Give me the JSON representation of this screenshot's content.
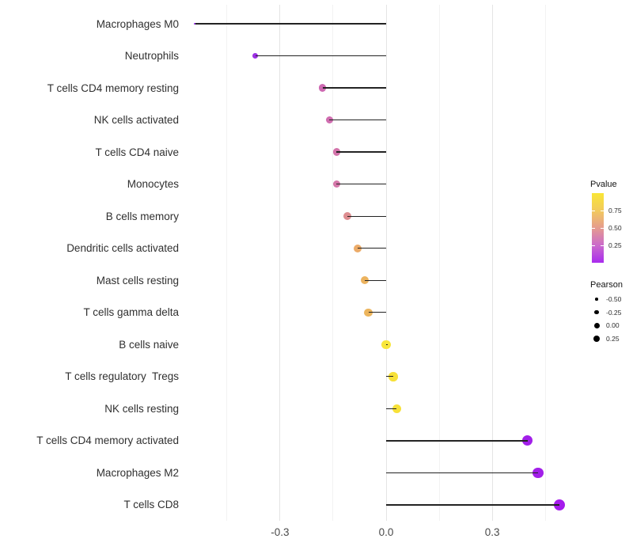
{
  "chart_data": {
    "type": "scatter",
    "subtype": "lollipop",
    "title": "",
    "xlabel": "",
    "ylabel": "",
    "xlim": [
      -0.59,
      0.55
    ],
    "grid": true,
    "x_major_ticks": [
      {
        "label": "-0.3",
        "value": -0.3
      },
      {
        "label": "0.0",
        "value": 0.0
      },
      {
        "label": "0.3",
        "value": 0.3
      }
    ],
    "x_minor_ticks": [
      -0.45,
      -0.15,
      0.15,
      0.45
    ],
    "baseline_value": 0.0,
    "rows": [
      {
        "label": "Macrophages M0",
        "pearson": -0.54,
        "color": "#8B27DA",
        "diameter": 2.6
      },
      {
        "label": "Neutrophils",
        "pearson": -0.37,
        "color": "#9C30E4",
        "diameter": 7.0
      },
      {
        "label": "T cells CD4 memory resting",
        "pearson": -0.18,
        "color": "#CE69B2",
        "diameter": 9.4
      },
      {
        "label": "NK cells activated",
        "pearson": -0.16,
        "color": "#D06DB0",
        "diameter": 9.5
      },
      {
        "label": "T cells CD4 naive",
        "pearson": -0.14,
        "color": "#D374AB",
        "diameter": 9.7
      },
      {
        "label": "Monocytes",
        "pearson": -0.14,
        "color": "#D577A9",
        "diameter": 9.7
      },
      {
        "label": "B cells memory",
        "pearson": -0.11,
        "color": "#DD8D90",
        "diameter": 10.0
      },
      {
        "label": "Dendritic cells activated",
        "pearson": -0.08,
        "color": "#ECAB68",
        "diameter": 10.2
      },
      {
        "label": "Mast cells resting",
        "pearson": -0.06,
        "color": "#ECB35F",
        "diameter": 10.4
      },
      {
        "label": "T cells gamma delta",
        "pearson": -0.05,
        "color": "#ECB55D",
        "diameter": 10.4
      },
      {
        "label": "B cells naive",
        "pearson": 0.0,
        "color": "#F8E63B",
        "diameter": 11.3
      },
      {
        "label": "T cells regulatory  Tregs",
        "pearson": 0.02,
        "color": "#F7E138",
        "diameter": 11.5
      },
      {
        "label": "NK cells resting",
        "pearson": 0.03,
        "color": "#F7E138",
        "diameter": 11.5
      },
      {
        "label": "T cells CD4 memory activated",
        "pearson": 0.4,
        "color": "#A21FE9",
        "diameter": 13.2
      },
      {
        "label": "Macrophages M2",
        "pearson": 0.43,
        "color": "#A21FE9",
        "diameter": 13.5
      },
      {
        "label": "T cells CD8",
        "pearson": 0.49,
        "color": "#A51BEC",
        "diameter": 14.0
      }
    ],
    "legend_position": "right"
  },
  "legend": {
    "pvalue": {
      "title": "Pvalue",
      "gradient_stops": [
        "#F9E636",
        "#F2CA5D",
        "#E59B8F",
        "#CB6BCB",
        "#A92BEE"
      ],
      "tick_labels": [
        "0.75",
        "0.50",
        "0.25"
      ],
      "tick_positions": [
        0.25,
        0.5,
        0.75
      ]
    },
    "pearson": {
      "title": "Pearson",
      "entries": [
        {
          "label": "-0.50",
          "diameter": 3.5
        },
        {
          "label": "-0.25",
          "diameter": 5.5
        },
        {
          "label": "0.00",
          "diameter": 7.0
        },
        {
          "label": "0.25",
          "diameter": 8.0
        }
      ]
    }
  }
}
